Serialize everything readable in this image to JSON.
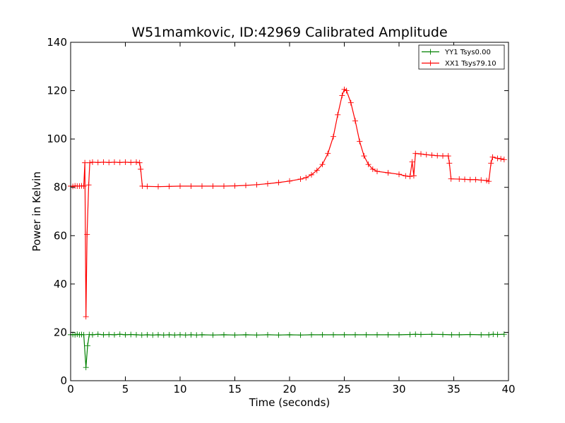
{
  "chart_data": {
    "type": "line",
    "title": "W51mamkovic, ID:42969 Calibrated Amplitude",
    "xlabel": "Time (seconds)",
    "ylabel": "Power in Kelvin",
    "xlim": [
      0,
      40
    ],
    "ylim": [
      0,
      140
    ],
    "xticks": [
      "0",
      "5",
      "10",
      "15",
      "20",
      "25",
      "30",
      "35",
      "40"
    ],
    "yticks": [
      "0",
      "20",
      "40",
      "60",
      "80",
      "100",
      "120",
      "140"
    ],
    "grid": false,
    "legend_position": "top-right",
    "marker": "+",
    "series": [
      {
        "name": "YY1 Tsys0.00",
        "color": "#008000",
        "points": [
          [
            0.0,
            19.0
          ],
          [
            0.2,
            19.1
          ],
          [
            0.4,
            19.0
          ],
          [
            0.6,
            19.2
          ],
          [
            0.8,
            19.0
          ],
          [
            1.0,
            19.1
          ],
          [
            1.2,
            19.0
          ],
          [
            1.4,
            5.5
          ],
          [
            1.55,
            14.5
          ],
          [
            1.7,
            19.1
          ],
          [
            2.0,
            19.0
          ],
          [
            2.5,
            19.2
          ],
          [
            3.0,
            19.0
          ],
          [
            3.5,
            19.1
          ],
          [
            4.0,
            19.0
          ],
          [
            4.5,
            19.2
          ],
          [
            5.0,
            19.0
          ],
          [
            5.5,
            19.1
          ],
          [
            6.0,
            19.0
          ],
          [
            6.5,
            18.9
          ],
          [
            7.0,
            19.0
          ],
          [
            7.5,
            18.9
          ],
          [
            8.0,
            19.0
          ],
          [
            8.5,
            18.9
          ],
          [
            9.0,
            19.0
          ],
          [
            9.5,
            18.9
          ],
          [
            10.0,
            19.0
          ],
          [
            10.5,
            18.9
          ],
          [
            11.0,
            19.0
          ],
          [
            11.5,
            18.9
          ],
          [
            12.0,
            19.0
          ],
          [
            13.0,
            18.9
          ],
          [
            14.0,
            19.0
          ],
          [
            15.0,
            18.9
          ],
          [
            16.0,
            19.0
          ],
          [
            17.0,
            18.9
          ],
          [
            18.0,
            19.0
          ],
          [
            19.0,
            18.9
          ],
          [
            20.0,
            19.0
          ],
          [
            21.0,
            18.9
          ],
          [
            22.0,
            19.0
          ],
          [
            23.0,
            19.0
          ],
          [
            24.0,
            19.0
          ],
          [
            25.0,
            19.0
          ],
          [
            26.0,
            19.0
          ],
          [
            27.0,
            19.0
          ],
          [
            28.0,
            19.0
          ],
          [
            29.0,
            19.0
          ],
          [
            30.0,
            19.0
          ],
          [
            31.0,
            19.1
          ],
          [
            31.5,
            19.2
          ],
          [
            32.0,
            19.1
          ],
          [
            33.0,
            19.2
          ],
          [
            34.0,
            19.1
          ],
          [
            34.8,
            19.0
          ],
          [
            35.5,
            19.0
          ],
          [
            36.5,
            19.1
          ],
          [
            37.5,
            19.0
          ],
          [
            38.2,
            19.0
          ],
          [
            38.6,
            19.2
          ],
          [
            39.0,
            19.1
          ],
          [
            39.6,
            19.2
          ]
        ]
      },
      {
        "name": "XX1 Tsys79.10",
        "color": "#ff0000",
        "points": [
          [
            0.0,
            80.5
          ],
          [
            0.2,
            80.4
          ],
          [
            0.4,
            80.6
          ],
          [
            0.6,
            80.5
          ],
          [
            0.8,
            80.5
          ],
          [
            1.0,
            80.6
          ],
          [
            1.2,
            80.5
          ],
          [
            1.3,
            90.2
          ],
          [
            1.4,
            26.5
          ],
          [
            1.5,
            60.5
          ],
          [
            1.65,
            81.0
          ],
          [
            1.75,
            90.2
          ],
          [
            2.0,
            90.4
          ],
          [
            2.5,
            90.3
          ],
          [
            3.0,
            90.4
          ],
          [
            3.5,
            90.3
          ],
          [
            4.0,
            90.4
          ],
          [
            4.5,
            90.3
          ],
          [
            5.0,
            90.4
          ],
          [
            5.5,
            90.3
          ],
          [
            6.0,
            90.4
          ],
          [
            6.3,
            90.2
          ],
          [
            6.4,
            87.5
          ],
          [
            6.55,
            80.5
          ],
          [
            7.0,
            80.4
          ],
          [
            8.0,
            80.3
          ],
          [
            9.0,
            80.4
          ],
          [
            10.0,
            80.5
          ],
          [
            11.0,
            80.5
          ],
          [
            12.0,
            80.5
          ],
          [
            13.0,
            80.5
          ],
          [
            14.0,
            80.5
          ],
          [
            15.0,
            80.6
          ],
          [
            16.0,
            80.8
          ],
          [
            17.0,
            81.1
          ],
          [
            18.0,
            81.5
          ],
          [
            19.0,
            82.0
          ],
          [
            20.0,
            82.6
          ],
          [
            21.0,
            83.4
          ],
          [
            21.5,
            84.0
          ],
          [
            22.0,
            85.2
          ],
          [
            22.5,
            87.0
          ],
          [
            23.0,
            89.5
          ],
          [
            23.5,
            94.0
          ],
          [
            24.0,
            101.0
          ],
          [
            24.4,
            110.0
          ],
          [
            24.8,
            118.0
          ],
          [
            25.0,
            120.5
          ],
          [
            25.2,
            120.0
          ],
          [
            25.6,
            115.0
          ],
          [
            26.0,
            107.5
          ],
          [
            26.4,
            99.0
          ],
          [
            26.8,
            93.0
          ],
          [
            27.2,
            89.5
          ],
          [
            27.6,
            87.5
          ],
          [
            28.0,
            86.6
          ],
          [
            29.0,
            86.0
          ],
          [
            30.0,
            85.4
          ],
          [
            30.6,
            84.7
          ],
          [
            31.0,
            84.5
          ],
          [
            31.2,
            90.5
          ],
          [
            31.35,
            84.8
          ],
          [
            31.5,
            94.0
          ],
          [
            32.0,
            93.8
          ],
          [
            32.5,
            93.5
          ],
          [
            33.0,
            93.3
          ],
          [
            33.5,
            93.1
          ],
          [
            34.0,
            93.0
          ],
          [
            34.5,
            93.0
          ],
          [
            34.6,
            90.0
          ],
          [
            34.75,
            83.5
          ],
          [
            35.5,
            83.4
          ],
          [
            36.0,
            83.3
          ],
          [
            36.5,
            83.2
          ],
          [
            37.0,
            83.2
          ],
          [
            37.5,
            83.0
          ],
          [
            38.0,
            82.8
          ],
          [
            38.2,
            82.5
          ],
          [
            38.4,
            90.0
          ],
          [
            38.55,
            92.5
          ],
          [
            39.0,
            92.0
          ],
          [
            39.3,
            91.8
          ],
          [
            39.6,
            91.5
          ]
        ]
      }
    ]
  }
}
